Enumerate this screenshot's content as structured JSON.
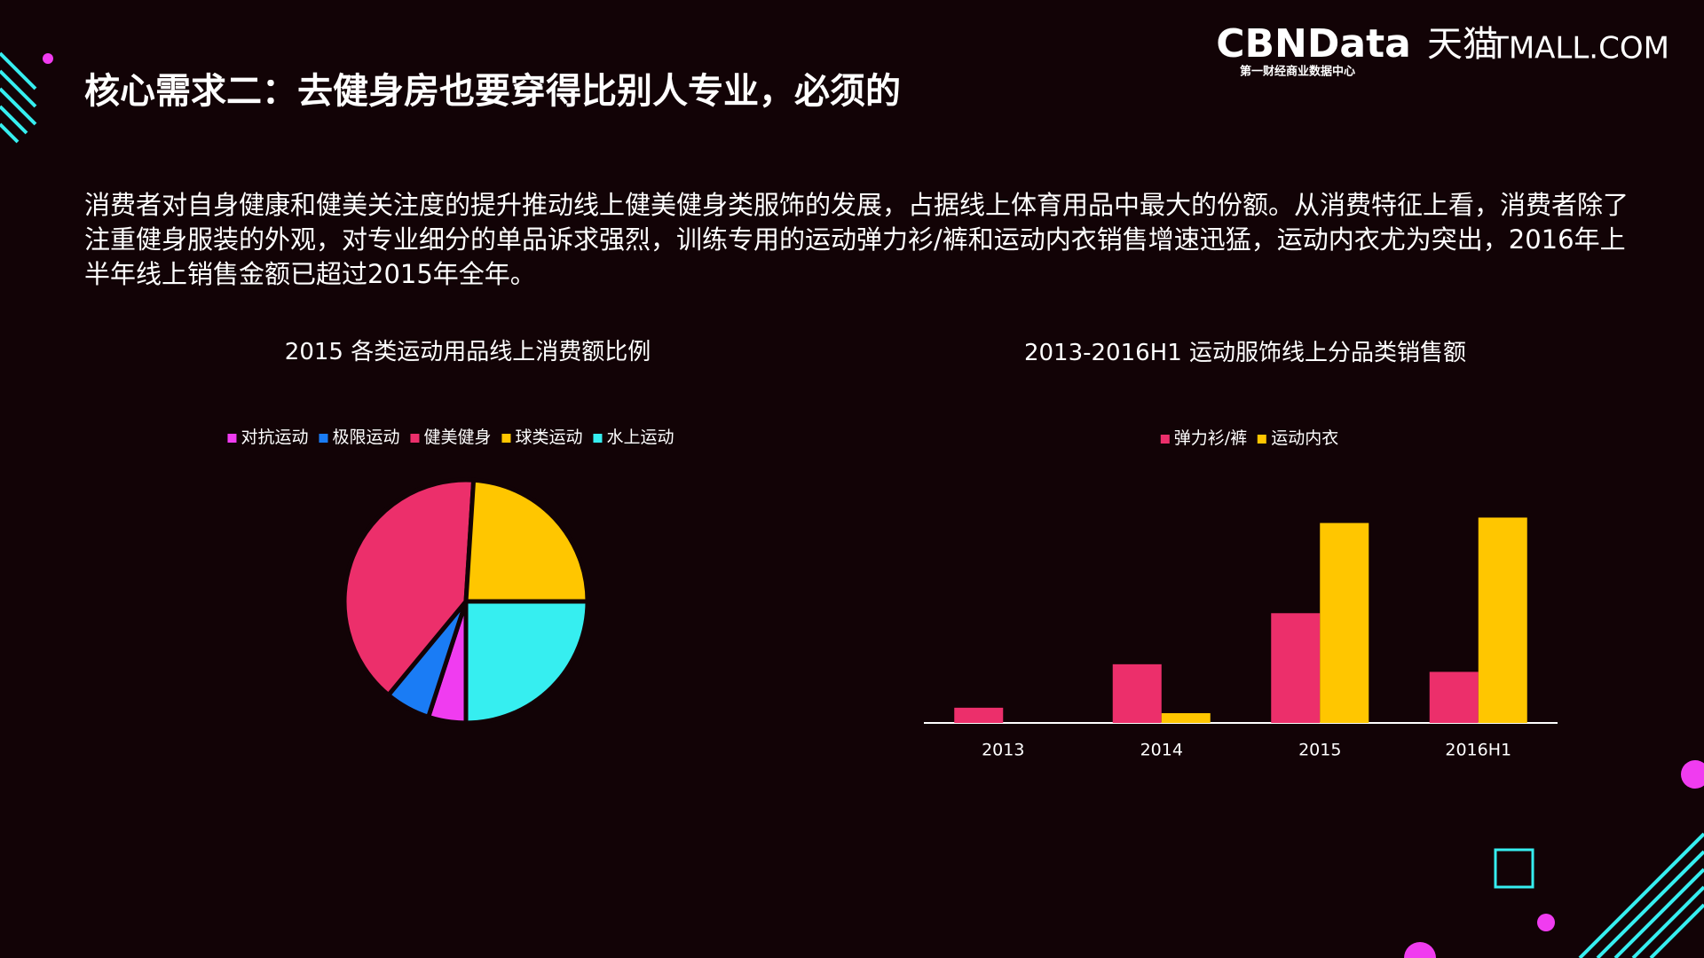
{
  "header": {
    "title": "核心需求二：去健身房也要穿得比别人专业，必须的",
    "logo_main": "CBNData",
    "logo_sub": "第一财经商业数据中心",
    "logo_partner": "天猫",
    "logo_partner_en": "TMALL.COM"
  },
  "body": {
    "text": "消费者对自身健康和健美关注度的提升推动线上健美健身类服饰的发展，占据线上体育用品中最大的份额。从消费特征上看，消费者除了注重健身服装的外观，对专业细分的单品诉求强烈，训练专用的运动弹力衫/裤和运动内衣销售增速迅猛，运动内衣尤为突出，2016年上半年线上销售金额已超过2015年全年。"
  },
  "chart_data": [
    {
      "type": "pie",
      "title": "2015 各类运动用品线上消费额比例",
      "categories": [
        "对抗运动",
        "极限运动",
        "健美健身",
        "球类运动",
        "水上运动"
      ],
      "values": [
        5,
        6,
        40,
        24,
        25
      ],
      "colors": [
        "#f03cf0",
        "#1a7cf5",
        "#ec2f6b",
        "#ffc600",
        "#36eef0"
      ]
    },
    {
      "type": "bar",
      "title": "2013-2016H1 运动服饰线上分品类销售额",
      "categories": [
        "2013",
        "2014",
        "2015",
        "2016H1"
      ],
      "series": [
        {
          "name": "弹力衫/裤",
          "color": "#ec2f6b",
          "values": [
            14,
            54,
            101,
            47
          ]
        },
        {
          "name": "运动内衣",
          "color": "#ffc600",
          "values": [
            null,
            9,
            184,
            189
          ]
        }
      ],
      "ylim": [
        0,
        200
      ]
    }
  ]
}
